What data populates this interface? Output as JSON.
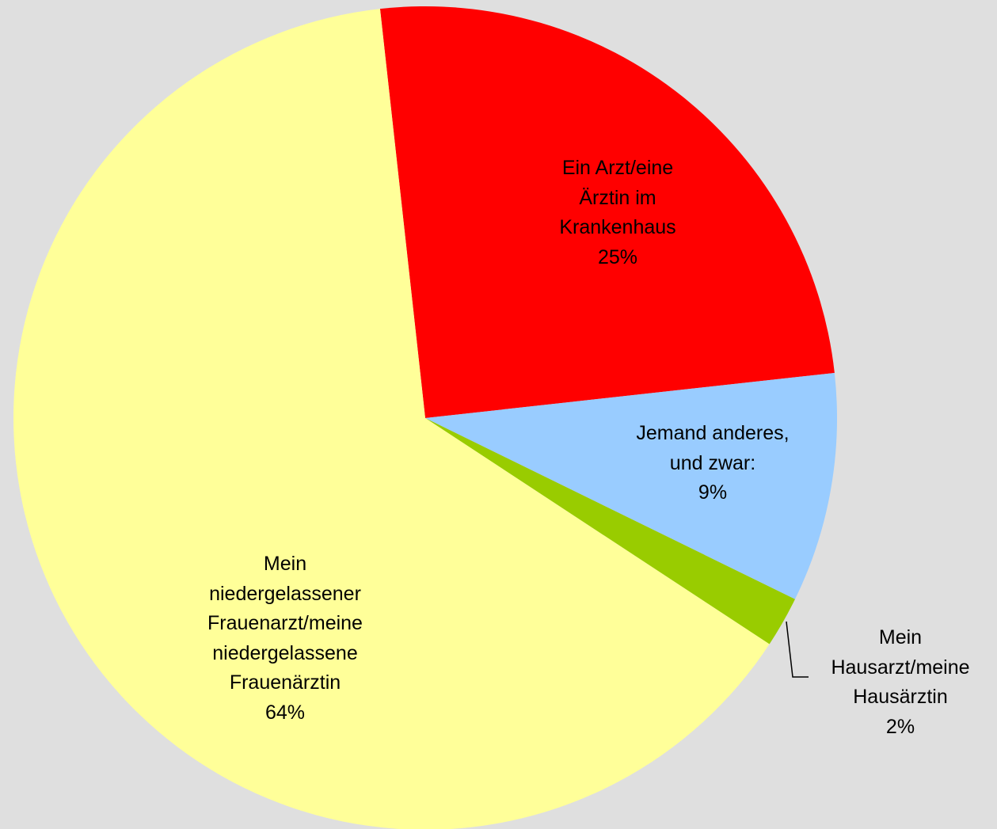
{
  "chart_data": {
    "type": "pie",
    "categories": [
      "Ein Arzt/eine\nÄrztin im\nKrankenhaus",
      "Jemand anderes,\nund zwar:",
      "Mein\nHausarzt/meine\nHausärztin",
      "Mein\nniedergelassener\nFrauenarzt/meine\nniedergelassene\nFrauenärztin"
    ],
    "values": [
      25,
      9,
      2,
      64
    ],
    "value_labels": [
      "25%",
      "9%",
      "2%",
      "64%"
    ],
    "colors": [
      "#ff0000",
      "#99ccff",
      "#99cc00",
      "#ffff99"
    ]
  }
}
